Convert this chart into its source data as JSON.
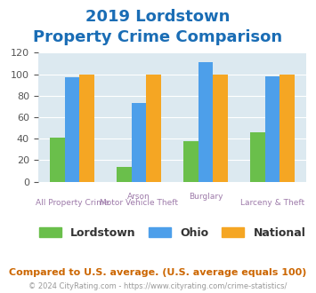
{
  "title_line1": "2019 Lordstown",
  "title_line2": "Property Crime Comparison",
  "x_labels_top": [
    "",
    "Arson",
    "Burglary",
    ""
  ],
  "x_labels_bottom": [
    "All Property Crime",
    "Motor Vehicle Theft",
    "",
    "Larceny & Theft"
  ],
  "series": {
    "Lordstown": [
      41,
      14,
      38,
      46
    ],
    "Ohio": [
      97,
      73,
      111,
      98
    ],
    "National": [
      100,
      100,
      100,
      100
    ]
  },
  "colors": {
    "Lordstown": "#6abf4b",
    "Ohio": "#4d9fea",
    "National": "#f5a623"
  },
  "ylim": [
    0,
    120
  ],
  "yticks": [
    0,
    20,
    40,
    60,
    80,
    100,
    120
  ],
  "background_color": "#dce9f0",
  "title_color": "#1a6db5",
  "xlabel_color": "#9e7baa",
  "footer_text": "Compared to U.S. average. (U.S. average equals 100)",
  "copyright_text": "© 2024 CityRating.com - https://www.cityrating.com/crime-statistics/",
  "footer_color": "#cc6600",
  "copyright_color": "#999999"
}
